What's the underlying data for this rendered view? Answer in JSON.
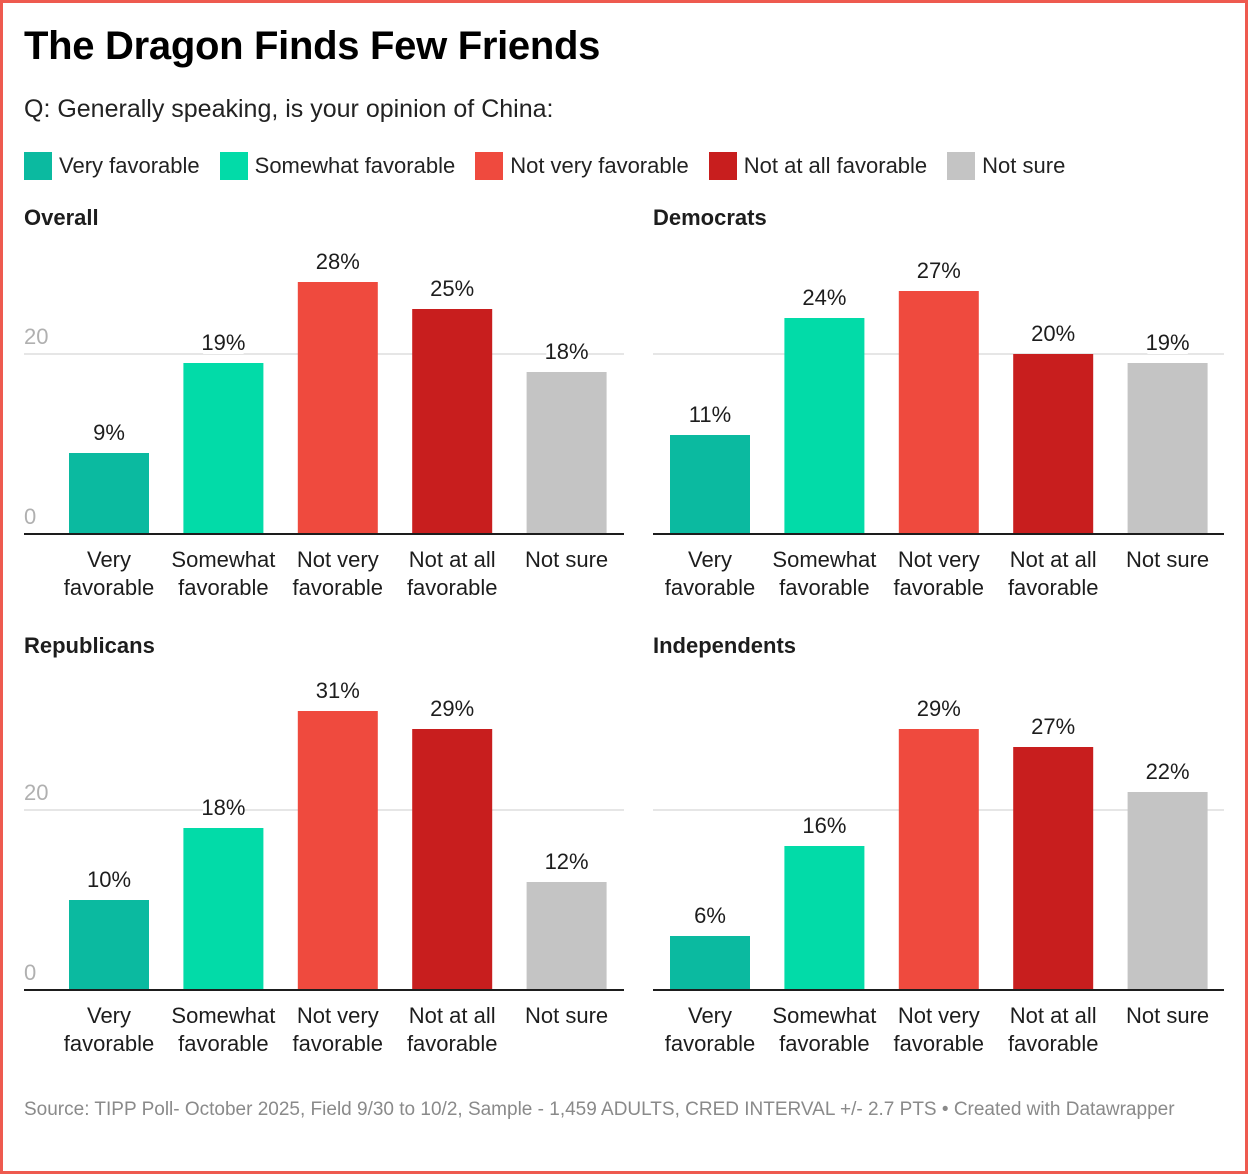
{
  "header": {
    "title": "The Dragon Finds Few Friends",
    "subtitle": "Q: Generally speaking, is your opinion of China:"
  },
  "legend": [
    {
      "label": "Very favorable",
      "color": "#0bbaa0"
    },
    {
      "label": "Somewhat favorable",
      "color": "#02dba8"
    },
    {
      "label": "Not very favorable",
      "color": "#ef4a3e"
    },
    {
      "label": "Not at all favorable",
      "color": "#c81e1e"
    },
    {
      "label": "Not sure",
      "color": "#c4c4c4"
    }
  ],
  "footer": {
    "source": "Source: TIPP Poll- October 2025, Field 9/30 to 10/2, Sample - 1,459 ADULTS, CRED INTERVAL +/- 2.7 PTS • Created with Datawrapper"
  },
  "chart_data": [
    {
      "type": "bar",
      "title": "Overall",
      "categories": [
        "Very favorable",
        "Somewhat favorable",
        "Not very favorable",
        "Not at all favorable",
        "Not sure"
      ],
      "category_lines": [
        [
          "Very",
          "favorable"
        ],
        [
          "Somewhat",
          "favorable"
        ],
        [
          "Not very",
          "favorable"
        ],
        [
          "Not at all",
          "favorable"
        ],
        [
          "Not sure"
        ]
      ],
      "values": [
        9,
        19,
        28,
        25,
        18
      ],
      "value_labels": [
        "9%",
        "19%",
        "28%",
        "25%",
        "18%"
      ],
      "colors": [
        "#0bbaa0",
        "#02dba8",
        "#ef4a3e",
        "#c81e1e",
        "#c4c4c4"
      ],
      "yticks": [
        0,
        20
      ],
      "ytick_labels_shown": true,
      "grid": true,
      "xlabel": "",
      "ylabel": ""
    },
    {
      "type": "bar",
      "title": "Democrats",
      "categories": [
        "Very favorable",
        "Somewhat favorable",
        "Not very favorable",
        "Not at all favorable",
        "Not sure"
      ],
      "category_lines": [
        [
          "Very",
          "favorable"
        ],
        [
          "Somewhat",
          "favorable"
        ],
        [
          "Not very",
          "favorable"
        ],
        [
          "Not at all",
          "favorable"
        ],
        [
          "Not sure"
        ]
      ],
      "values": [
        11,
        24,
        27,
        20,
        19
      ],
      "value_labels": [
        "11%",
        "24%",
        "27%",
        "20%",
        "19%"
      ],
      "colors": [
        "#0bbaa0",
        "#02dba8",
        "#ef4a3e",
        "#c81e1e",
        "#c4c4c4"
      ],
      "yticks": [
        0,
        20
      ],
      "ytick_labels_shown": false,
      "grid": true,
      "xlabel": "",
      "ylabel": ""
    },
    {
      "type": "bar",
      "title": "Republicans",
      "categories": [
        "Very favorable",
        "Somewhat favorable",
        "Not very favorable",
        "Not at all favorable",
        "Not sure"
      ],
      "category_lines": [
        [
          "Very",
          "favorable"
        ],
        [
          "Somewhat",
          "favorable"
        ],
        [
          "Not very",
          "favorable"
        ],
        [
          "Not at all",
          "favorable"
        ],
        [
          "Not sure"
        ]
      ],
      "values": [
        10,
        18,
        31,
        29,
        12
      ],
      "value_labels": [
        "10%",
        "18%",
        "31%",
        "29%",
        "12%"
      ],
      "colors": [
        "#0bbaa0",
        "#02dba8",
        "#ef4a3e",
        "#c81e1e",
        "#c4c4c4"
      ],
      "yticks": [
        0,
        20
      ],
      "ytick_labels_shown": true,
      "grid": true,
      "xlabel": "",
      "ylabel": ""
    },
    {
      "type": "bar",
      "title": "Independents",
      "categories": [
        "Very favorable",
        "Somewhat favorable",
        "Not very favorable",
        "Not at all favorable",
        "Not sure"
      ],
      "category_lines": [
        [
          "Very",
          "favorable"
        ],
        [
          "Somewhat",
          "favorable"
        ],
        [
          "Not very",
          "favorable"
        ],
        [
          "Not at all",
          "favorable"
        ],
        [
          "Not sure"
        ]
      ],
      "values": [
        6,
        16,
        29,
        27,
        22
      ],
      "value_labels": [
        "6%",
        "16%",
        "29%",
        "27%",
        "22%"
      ],
      "colors": [
        "#0bbaa0",
        "#02dba8",
        "#ef4a3e",
        "#c81e1e",
        "#c4c4c4"
      ],
      "yticks": [
        0,
        20
      ],
      "ytick_labels_shown": false,
      "grid": true,
      "xlabel": "",
      "ylabel": ""
    }
  ]
}
